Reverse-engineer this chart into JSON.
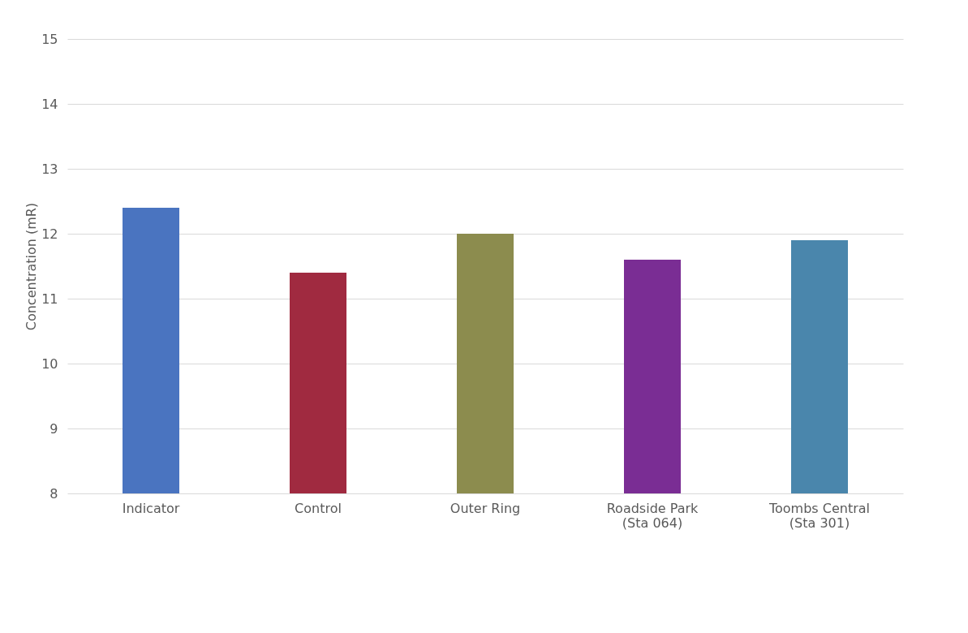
{
  "chart_data": {
    "type": "bar",
    "ylabel": "Concentration (mR)",
    "categories": [
      "Indicator",
      "Control",
      "Outer Ring",
      "Roadside Park\n(Sta 064)",
      "Toombs Central\n(Sta 301)"
    ],
    "values": [
      12.4,
      11.4,
      12.0,
      11.6,
      11.9
    ],
    "colors": [
      "#4a74c0",
      "#a02a40",
      "#8c8c4e",
      "#7a2d94",
      "#4a86ac"
    ],
    "ylim": [
      8,
      15
    ],
    "yticks": [
      8,
      9,
      10,
      11,
      12,
      13,
      14,
      15
    ],
    "grid": "y"
  }
}
